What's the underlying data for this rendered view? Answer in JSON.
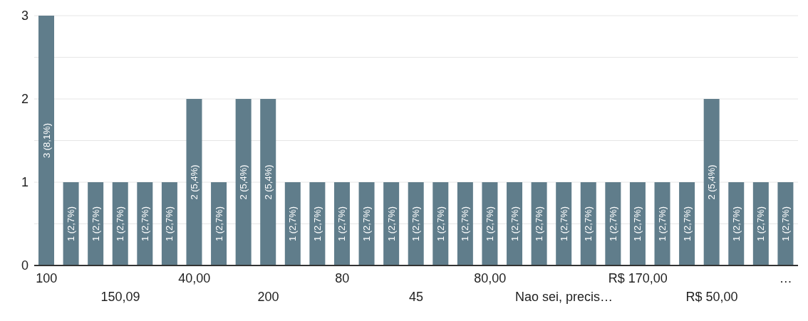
{
  "chart_data": {
    "type": "bar",
    "categories": [
      "100",
      null,
      null,
      "150,09",
      null,
      null,
      "40,00",
      null,
      null,
      "200",
      null,
      null,
      "80",
      null,
      null,
      "45",
      null,
      null,
      "80,00",
      null,
      null,
      "Nao sei, precis…",
      null,
      null,
      "R$ 170,00",
      null,
      null,
      "R$ 50,00",
      null,
      null,
      "…"
    ],
    "values": [
      3,
      1,
      1,
      1,
      1,
      1,
      2,
      1,
      2,
      2,
      1,
      1,
      1,
      1,
      1,
      1,
      1,
      1,
      1,
      1,
      1,
      1,
      1,
      1,
      1,
      1,
      1,
      2,
      1,
      1,
      1
    ],
    "value_labels": [
      "3 (8,1%)",
      "1 (2,7%)",
      "1 (2,7%)",
      "1 (2,7%)",
      "1 (2,7%)",
      "1 (2,7%)",
      "2 (5,4%)",
      "1 (2,7%)",
      "2 (5,4%)",
      "2 (5,4%)",
      "1 (2,7%)",
      "1 (2,7%)",
      "1 (2,7%)",
      "1 (2,7%)",
      "1 (2,7%)",
      "1 (2,7%)",
      "1 (2,7%)",
      "1 (2,7%)",
      "1 (2,7%)",
      "1 (2,7%)",
      "1 (2,7%)",
      "1 (2,7%)",
      "1 (2,7%)",
      "1 (2,7%)",
      "1 (2,7%)",
      "1 (2,7%)",
      "1 (2,7%)",
      "2 (5,4%)",
      "1 (2,7%)",
      "1 (2,7%)",
      "1 (2,7%)"
    ],
    "color": "#607d8b",
    "ylim": [
      0,
      3
    ],
    "yticks": [
      0,
      {
        "value": 0.5,
        "label": null
      },
      1,
      {
        "value": 1.5,
        "label": null
      },
      2,
      {
        "value": 2.5,
        "label": null
      },
      3
    ],
    "grid": "y"
  }
}
